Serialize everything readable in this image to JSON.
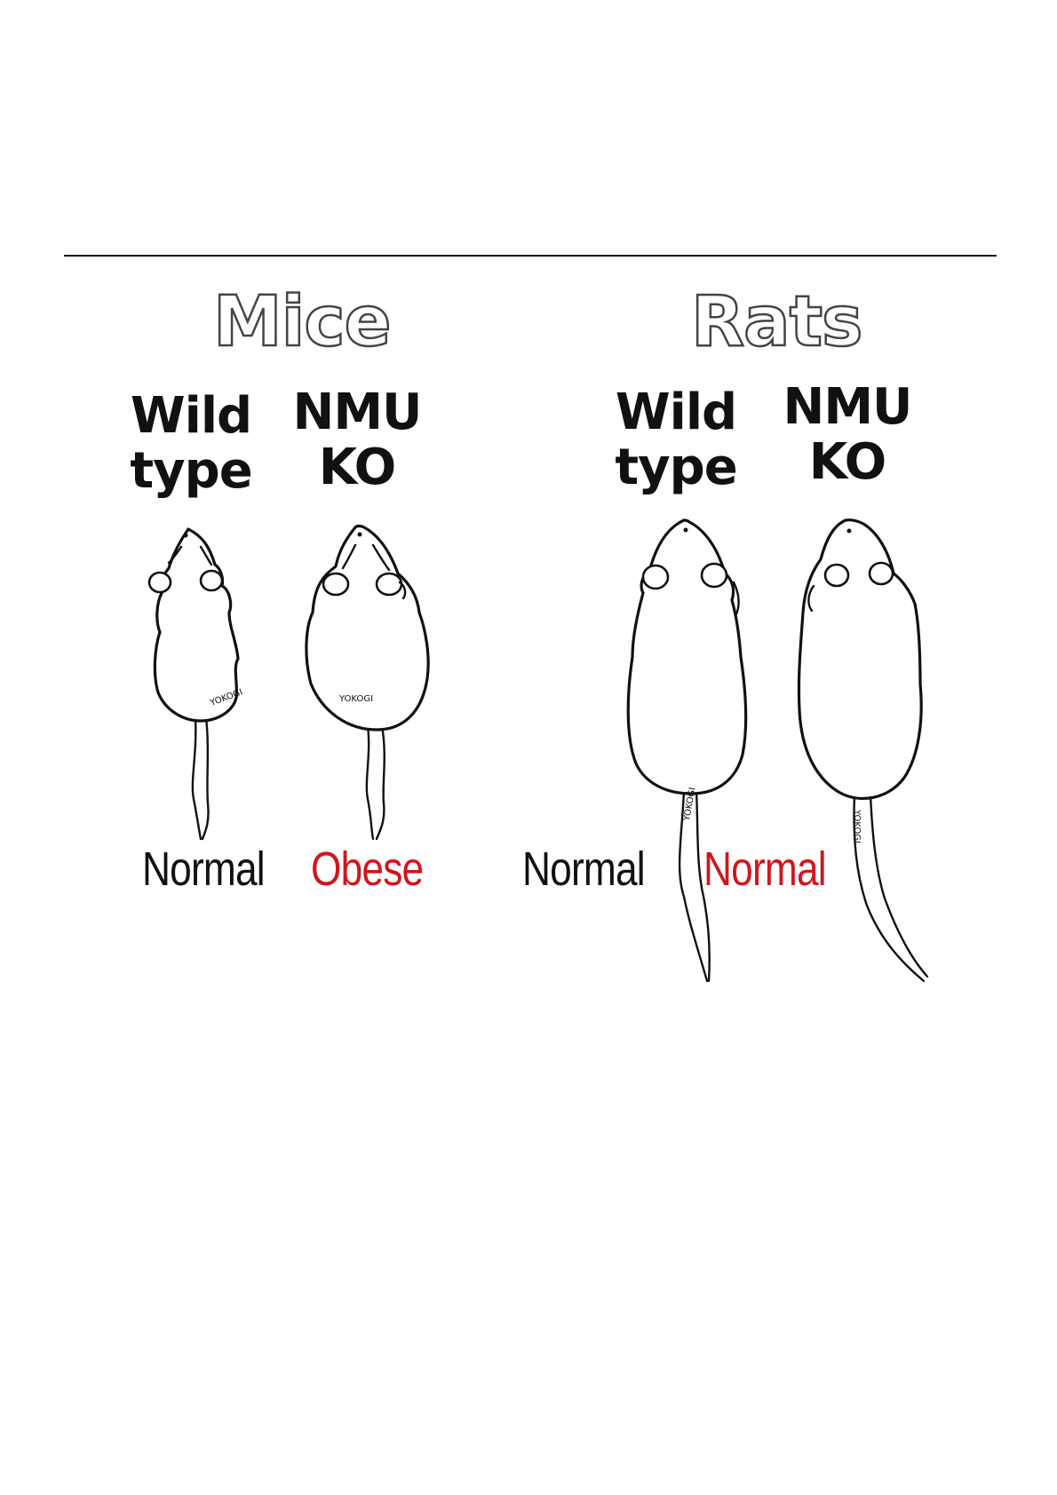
{
  "groups": {
    "mice": {
      "title": "Mice",
      "wild": {
        "line1": "Wild",
        "line2": "type",
        "outcome": "Normal",
        "outcome_color": "#111111"
      },
      "ko": {
        "line1": "NMU",
        "line2": "KO",
        "outcome": "Obese",
        "outcome_color": "#d0161e"
      }
    },
    "rats": {
      "title": "Rats",
      "wild": {
        "line1": "Wild",
        "line2": "type",
        "outcome": "Normal",
        "outcome_color": "#111111"
      },
      "ko": {
        "line1": "NMU",
        "line2": "KO",
        "outcome": "Normal",
        "outcome_color": "#d0161e"
      }
    }
  },
  "signature": "YOKOGI",
  "icons": [
    "mouse-wild-type",
    "mouse-nmu-ko",
    "rat-wild-type",
    "rat-nmu-ko"
  ]
}
